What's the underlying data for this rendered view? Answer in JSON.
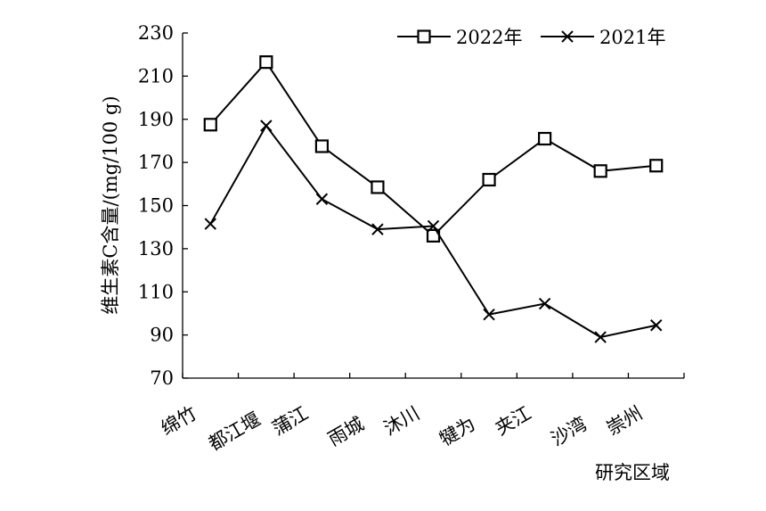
{
  "chart_data": {
    "type": "line",
    "title": "",
    "xlabel": "研究区域",
    "ylabel": "维生素C含量/(mg/100 g)",
    "ylim": [
      70,
      230
    ],
    "yticks": [
      70,
      90,
      110,
      130,
      150,
      170,
      190,
      210,
      230
    ],
    "grid": false,
    "legend_position": "top-right",
    "categories": [
      "绵竹",
      "都江堰",
      "蒲江",
      "雨城",
      "沐川",
      "犍为",
      "夹江",
      "沙湾",
      "崇州"
    ],
    "series": [
      {
        "name": "2022年",
        "marker": "square",
        "values": [
          187.5,
          216.5,
          177.5,
          158.5,
          136,
          162,
          181,
          166,
          168.5
        ]
      },
      {
        "name": "2021年",
        "marker": "x",
        "values": [
          141.5,
          187,
          153,
          139,
          140.5,
          99.5,
          104.5,
          89,
          94.5
        ]
      }
    ]
  }
}
